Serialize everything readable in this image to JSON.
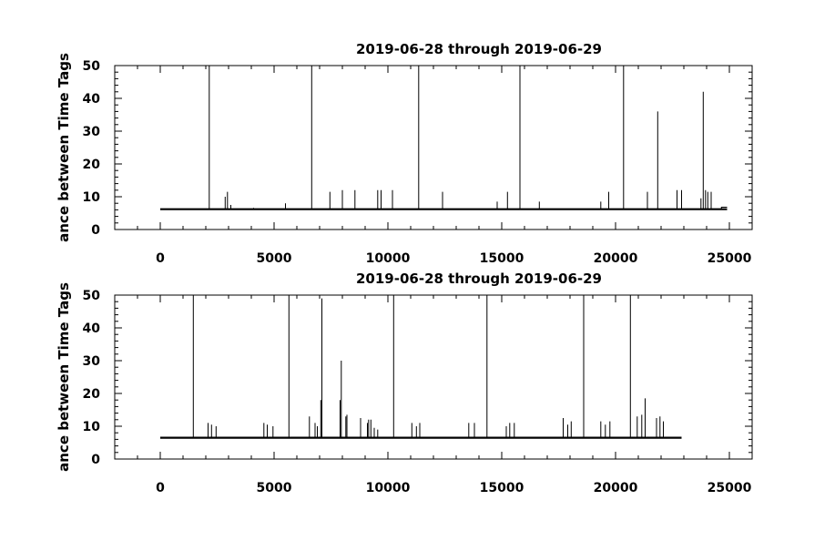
{
  "chart_data": [
    {
      "type": "line",
      "title": "2019-06-28 through 2019-06-29",
      "ylabel": "ance between Time Tags",
      "xlabel": "",
      "xlim": [
        -2000,
        26000
      ],
      "ylim": [
        0,
        50
      ],
      "xticks": [
        0,
        5000,
        10000,
        15000,
        20000,
        25000
      ],
      "yticks": [
        0,
        10,
        20,
        30,
        40,
        50
      ],
      "grid": false,
      "baseline": 6.2,
      "x_end": 24900,
      "end_tail": 6.8,
      "spikes": [
        {
          "x": 2150,
          "y": 50
        },
        {
          "x": 2850,
          "y": 10
        },
        {
          "x": 2950,
          "y": 11.5
        },
        {
          "x": 3100,
          "y": 7.5
        },
        {
          "x": 4100,
          "y": 6.6
        },
        {
          "x": 5500,
          "y": 8
        },
        {
          "x": 6650,
          "y": 50
        },
        {
          "x": 7450,
          "y": 11.5
        },
        {
          "x": 8000,
          "y": 12
        },
        {
          "x": 8550,
          "y": 12
        },
        {
          "x": 9550,
          "y": 12
        },
        {
          "x": 9700,
          "y": 12
        },
        {
          "x": 10200,
          "y": 12
        },
        {
          "x": 11350,
          "y": 50
        },
        {
          "x": 12400,
          "y": 11.5
        },
        {
          "x": 14800,
          "y": 8.5
        },
        {
          "x": 15250,
          "y": 11.5
        },
        {
          "x": 15800,
          "y": 50
        },
        {
          "x": 16650,
          "y": 8.5
        },
        {
          "x": 19350,
          "y": 8.5
        },
        {
          "x": 19700,
          "y": 11.5
        },
        {
          "x": 20350,
          "y": 50
        },
        {
          "x": 21400,
          "y": 11.5
        },
        {
          "x": 21850,
          "y": 36
        },
        {
          "x": 22700,
          "y": 12
        },
        {
          "x": 22900,
          "y": 12
        },
        {
          "x": 23750,
          "y": 9.5
        },
        {
          "x": 23850,
          "y": 42
        },
        {
          "x": 23950,
          "y": 12
        },
        {
          "x": 24050,
          "y": 11.5
        },
        {
          "x": 24200,
          "y": 11.5
        }
      ]
    },
    {
      "type": "line",
      "title": "2019-06-28 through 2019-06-29",
      "ylabel": "ance between Time Tags",
      "xlabel": "",
      "xlim": [
        -2000,
        26000
      ],
      "ylim": [
        0,
        50
      ],
      "xticks": [
        0,
        5000,
        10000,
        15000,
        20000,
        25000
      ],
      "yticks": [
        0,
        10,
        20,
        30,
        40,
        50
      ],
      "grid": false,
      "baseline": 6.5,
      "x_end": 22900,
      "end_tail": 6.5,
      "spikes": [
        {
          "x": 1450,
          "y": 50
        },
        {
          "x": 2100,
          "y": 11
        },
        {
          "x": 2250,
          "y": 10.5
        },
        {
          "x": 2450,
          "y": 10
        },
        {
          "x": 4550,
          "y": 11
        },
        {
          "x": 4700,
          "y": 10.5
        },
        {
          "x": 4950,
          "y": 10
        },
        {
          "x": 5650,
          "y": 50
        },
        {
          "x": 6550,
          "y": 13
        },
        {
          "x": 6800,
          "y": 11
        },
        {
          "x": 6900,
          "y": 10
        },
        {
          "x": 7050,
          "y": 18
        },
        {
          "x": 7100,
          "y": 49
        },
        {
          "x": 7900,
          "y": 18
        },
        {
          "x": 7950,
          "y": 30
        },
        {
          "x": 8150,
          "y": 13
        },
        {
          "x": 8200,
          "y": 13.5
        },
        {
          "x": 8800,
          "y": 12.5
        },
        {
          "x": 9100,
          "y": 11
        },
        {
          "x": 9150,
          "y": 12
        },
        {
          "x": 9250,
          "y": 12
        },
        {
          "x": 9400,
          "y": 9.5
        },
        {
          "x": 9550,
          "y": 9
        },
        {
          "x": 10250,
          "y": 50
        },
        {
          "x": 11050,
          "y": 11
        },
        {
          "x": 11250,
          "y": 10
        },
        {
          "x": 11400,
          "y": 11
        },
        {
          "x": 13550,
          "y": 11
        },
        {
          "x": 13800,
          "y": 11
        },
        {
          "x": 14350,
          "y": 50
        },
        {
          "x": 15200,
          "y": 10
        },
        {
          "x": 15350,
          "y": 11
        },
        {
          "x": 15550,
          "y": 11
        },
        {
          "x": 17700,
          "y": 12.5
        },
        {
          "x": 17900,
          "y": 10.5
        },
        {
          "x": 18050,
          "y": 11.5
        },
        {
          "x": 18600,
          "y": 50
        },
        {
          "x": 19350,
          "y": 11.5
        },
        {
          "x": 19550,
          "y": 10.5
        },
        {
          "x": 19750,
          "y": 11.5
        },
        {
          "x": 20650,
          "y": 50
        },
        {
          "x": 20950,
          "y": 13
        },
        {
          "x": 21150,
          "y": 13.5
        },
        {
          "x": 21300,
          "y": 18.5
        },
        {
          "x": 21800,
          "y": 12.5
        },
        {
          "x": 21950,
          "y": 13
        },
        {
          "x": 22100,
          "y": 11.5
        }
      ]
    }
  ]
}
